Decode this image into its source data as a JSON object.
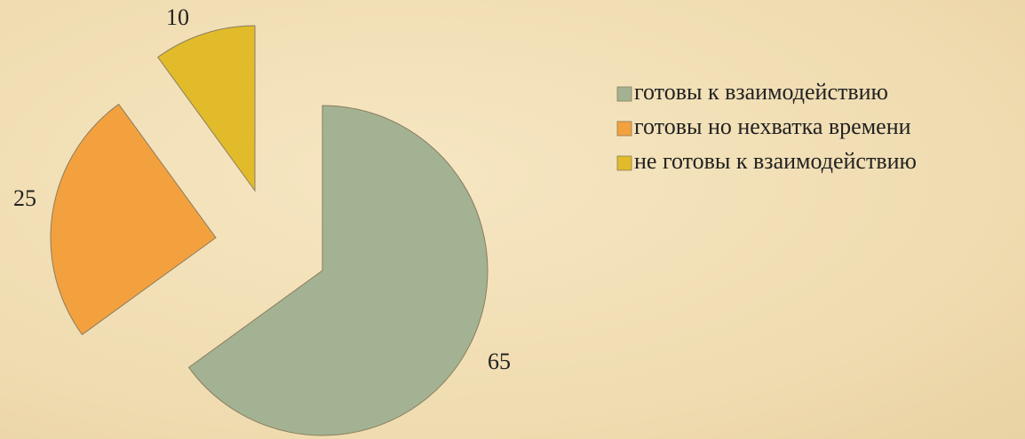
{
  "chart_data": {
    "type": "pie",
    "categories": [
      "готовы к взаимодействию",
      "готовы но нехватка времени",
      "не готовы к взаимодействию"
    ],
    "values": [
      65,
      25,
      10
    ],
    "colors": [
      "#a3b292",
      "#f3a13f",
      "#e2bb2b"
    ],
    "legend": "right"
  }
}
